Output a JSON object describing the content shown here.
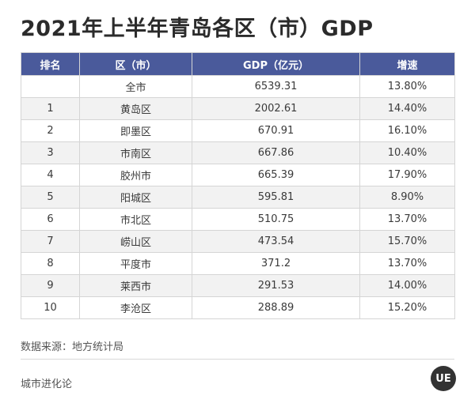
{
  "title": "2021年上半年青岛各区（市）GDP",
  "table": {
    "headers": [
      "排名",
      "区（市）",
      "GDP（亿元）",
      "增速"
    ],
    "rows": [
      [
        "",
        "全市",
        "6539.31",
        "13.80%"
      ],
      [
        "1",
        "黄岛区",
        "2002.61",
        "14.40%"
      ],
      [
        "2",
        "即墨区",
        "670.91",
        "16.10%"
      ],
      [
        "3",
        "市南区",
        "667.86",
        "10.40%"
      ],
      [
        "4",
        "胶州市",
        "665.39",
        "17.90%"
      ],
      [
        "5",
        "阳城区",
        "595.81",
        "8.90%"
      ],
      [
        "6",
        "市北区",
        "510.75",
        "13.70%"
      ],
      [
        "7",
        "崂山区",
        "473.54",
        "15.70%"
      ],
      [
        "8",
        "平度市",
        "371.2",
        "13.70%"
      ],
      [
        "9",
        "莱西市",
        "291.53",
        "14.00%"
      ],
      [
        "10",
        "李沧区",
        "288.89",
        "15.20%"
      ]
    ]
  },
  "source": "数据来源：地方统计局",
  "footer": "城市进化论",
  "logo": "UE"
}
